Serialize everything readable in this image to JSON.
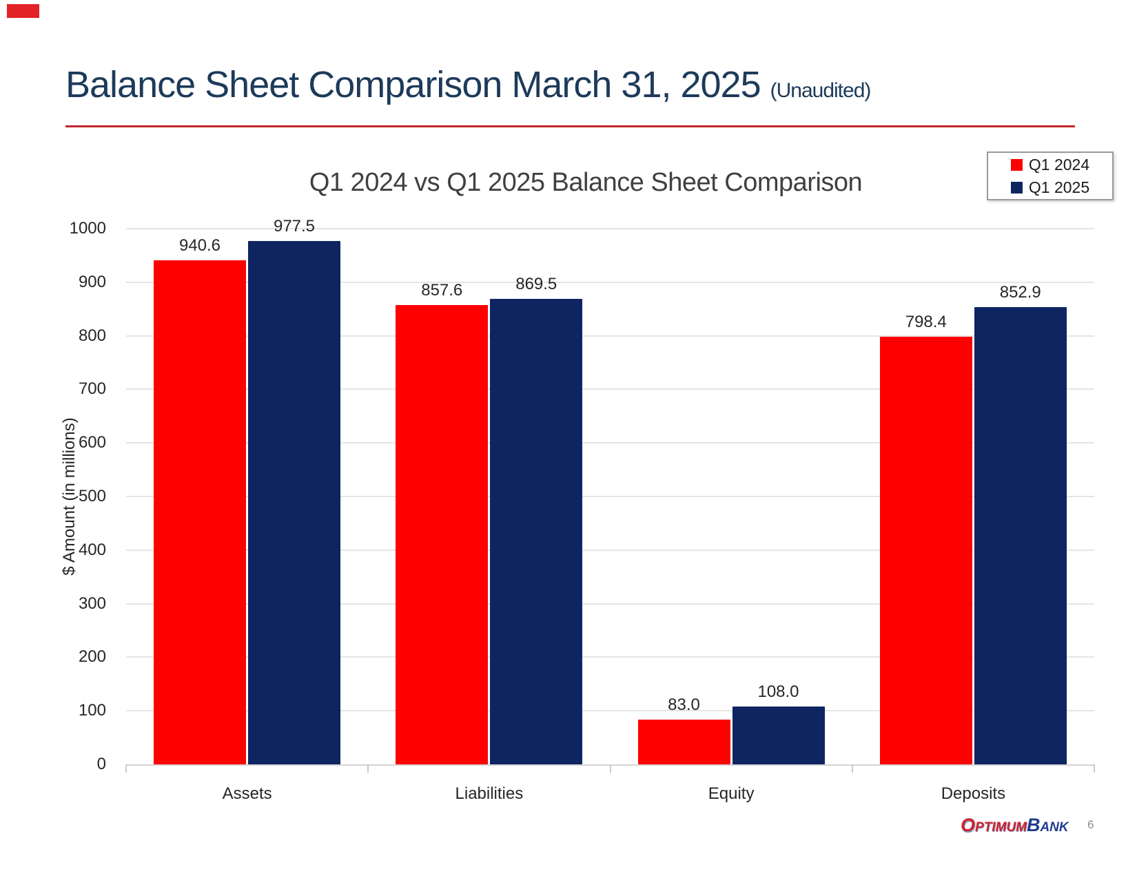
{
  "slide": {
    "title": "Balance Sheet Comparison March 31, 2025",
    "subtitle": "(Unaudited)",
    "page_number": "6"
  },
  "logo": {
    "red_initial": "O",
    "red_rest": "PTIMUM",
    "navy_initial": "B",
    "navy_rest": "ANK"
  },
  "colors": {
    "corner_accent": "#e32227",
    "title_text": "#1d3a5a",
    "accent_rule": "#c3242b",
    "series_red": "#ff0000",
    "series_navy": "#0e2562",
    "gridline": "#e5e5e5",
    "axis_line": "#d5d5d5",
    "tick_mark": "#c9c9c9",
    "chart_text": "#262626",
    "chart_title_text": "#404040"
  },
  "chart_data": {
    "type": "bar",
    "title": "Q1 2024 vs Q1 2025 Balance Sheet Comparison",
    "categories": [
      "Assets",
      "Liabilities",
      "Equity",
      "Deposits"
    ],
    "series": [
      {
        "name": "Q1 2024",
        "color": "#ff0000",
        "values": [
          940.6,
          857.6,
          83.0,
          798.4
        ]
      },
      {
        "name": "Q1 2025",
        "color": "#0e2562",
        "values": [
          977.5,
          869.5,
          108.0,
          852.9
        ]
      }
    ],
    "ylabel": "$ Amount (in millions)",
    "xlabel": "",
    "ylim": [
      0,
      1000
    ],
    "ytick_step": 100,
    "grid": true,
    "legend_position": "top-right",
    "value_label_decimals": 1
  }
}
